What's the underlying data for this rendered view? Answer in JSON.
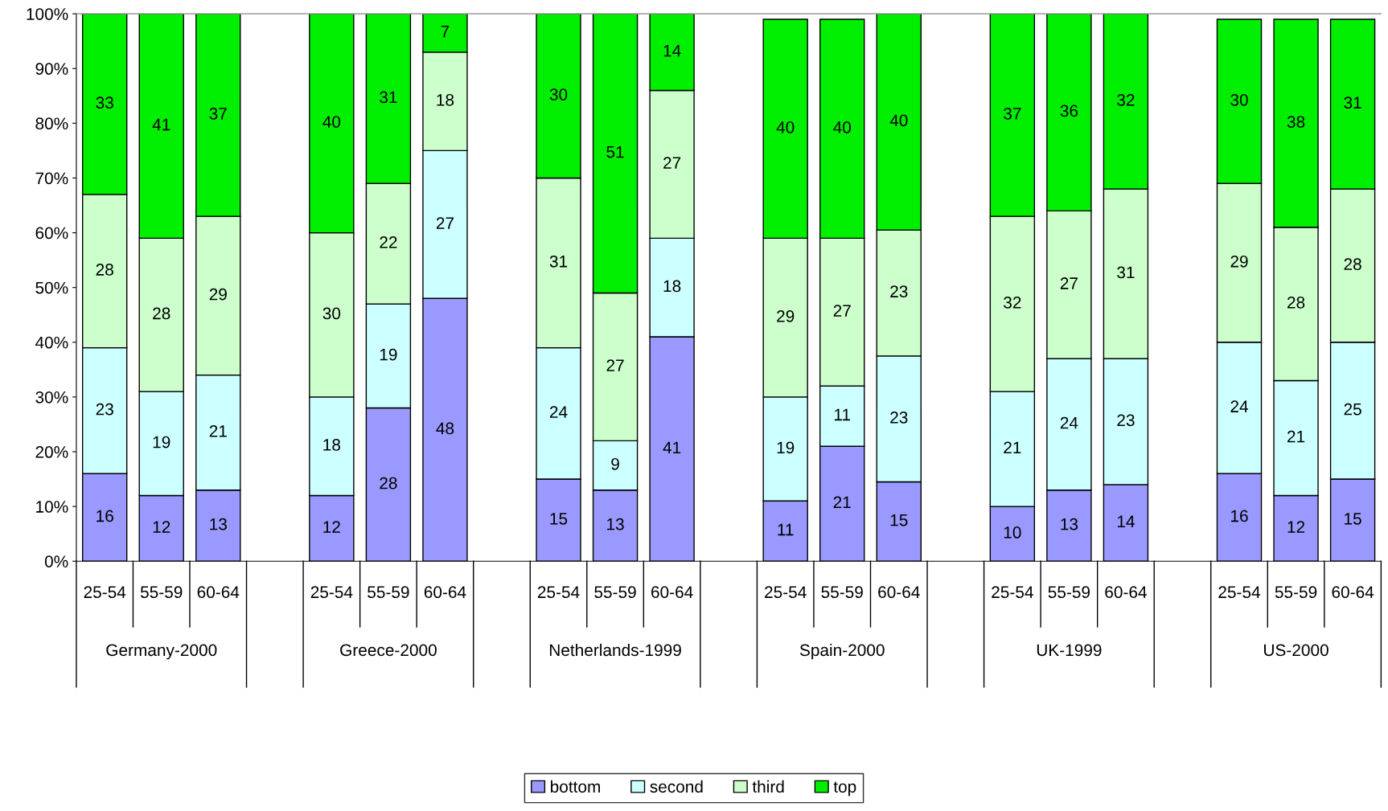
{
  "chart_data": {
    "type": "bar",
    "stacked": true,
    "legend": "bottom",
    "grid": false,
    "categories": [
      "25-54",
      "55-59",
      "60-64",
      null,
      "25-54",
      "55-59",
      "60-64",
      null,
      "25-54",
      "55-59",
      "60-64",
      null,
      "25-54",
      "55-59",
      "60-64",
      null,
      "25-54",
      "55-59",
      "60-64",
      null,
      "25-54",
      "55-59",
      "60-64"
    ],
    "series": [
      {
        "name": "bottom",
        "color": "#9999ff",
        "values": [
          16,
          12,
          13,
          null,
          12,
          28,
          48,
          null,
          15,
          13,
          41,
          null,
          11,
          21,
          14.5,
          null,
          10,
          13,
          14,
          null,
          16,
          12,
          15
        ],
        "value_labels": [
          "16",
          "12",
          "13",
          null,
          "12",
          "28",
          "48",
          null,
          "15",
          "13",
          "41",
          null,
          "11",
          "21",
          "15",
          null,
          "10",
          "13",
          "14",
          null,
          "16",
          "12",
          "15"
        ]
      },
      {
        "name": "second",
        "color": "#ccffff",
        "values": [
          23,
          19,
          21,
          null,
          18,
          19,
          27,
          null,
          24,
          9,
          18,
          null,
          19,
          11,
          23,
          null,
          21,
          24,
          23,
          null,
          24,
          21,
          25
        ],
        "value_labels": [
          "23",
          "19",
          "21",
          null,
          "18",
          "19",
          "27",
          null,
          "24",
          "9",
          "18",
          null,
          "19",
          "11",
          "23",
          null,
          "21",
          "24",
          "23",
          null,
          "24",
          "21",
          "25"
        ]
      },
      {
        "name": "third",
        "color": "#ccffcc",
        "values": [
          28,
          28,
          29,
          null,
          30,
          22,
          18,
          null,
          31,
          27,
          27,
          null,
          29,
          27,
          23,
          null,
          32,
          27,
          31,
          null,
          29,
          28,
          28
        ],
        "value_labels": [
          "28",
          "28",
          "29",
          null,
          "30",
          "22",
          "18",
          null,
          "31",
          "27",
          "27",
          null,
          "29",
          "27",
          "23",
          null,
          "32",
          "27",
          "31",
          null,
          "29",
          "28",
          "28"
        ]
      },
      {
        "name": "top",
        "color": "#00ee00",
        "values": [
          33,
          41,
          37,
          null,
          40,
          31,
          7,
          null,
          30,
          51,
          14,
          null,
          40,
          40,
          39.5,
          null,
          37,
          36,
          32,
          null,
          30,
          38,
          31
        ],
        "value_labels": [
          "33",
          "41",
          "37",
          null,
          "40",
          "31",
          "7",
          null,
          "30",
          "51",
          "14",
          null,
          "40",
          "40",
          "40",
          null,
          "37",
          "36",
          "32",
          null,
          "30",
          "38",
          "31"
        ]
      }
    ],
    "ylim": [
      0,
      100
    ],
    "yticks": [
      {
        "value": 0,
        "label": "0%"
      },
      {
        "value": 10,
        "label": "10%"
      },
      {
        "value": 20,
        "label": "20%"
      },
      {
        "value": 30,
        "label": "30%"
      },
      {
        "value": 40,
        "label": "40%"
      },
      {
        "value": 50,
        "label": "50%"
      },
      {
        "value": 60,
        "label": "60%"
      },
      {
        "value": 70,
        "label": "70%"
      },
      {
        "value": 80,
        "label": "80%"
      },
      {
        "value": 90,
        "label": "90%"
      },
      {
        "value": 100,
        "label": "100%"
      }
    ],
    "annotations": [
      "Germany-2000",
      "Greece-2000",
      "Netherlands-1999",
      "Spain-2000",
      "UK-1999",
      "US-2000"
    ]
  }
}
